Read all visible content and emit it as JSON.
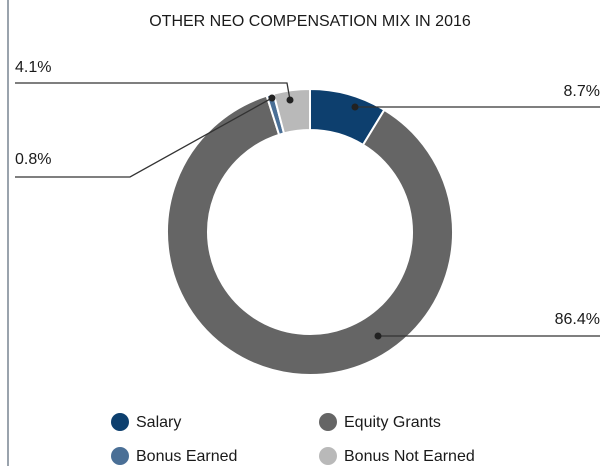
{
  "chart_data": {
    "type": "pie",
    "donut": true,
    "title": "OTHER NEO COMPENSATION MIX IN 2016",
    "categories": [
      "Salary",
      "Equity Grants",
      "Bonus Earned",
      "Bonus Not Earned"
    ],
    "values": [
      8.7,
      86.4,
      0.8,
      4.1
    ],
    "value_labels": [
      "8.7%",
      "86.4%",
      "0.8%",
      "4.1%"
    ],
    "colors": [
      "#0d3f6e",
      "#656565",
      "#4a6f96",
      "#b9b9b9"
    ],
    "legend": "bottom"
  }
}
